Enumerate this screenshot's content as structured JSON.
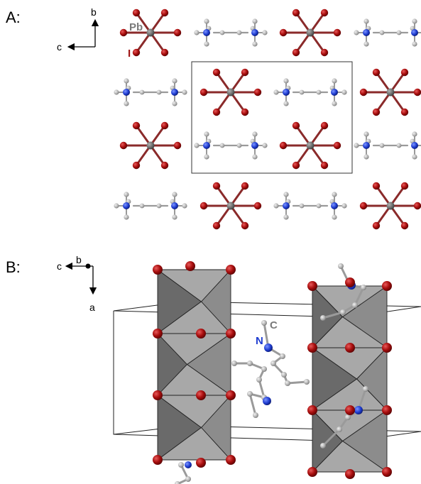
{
  "panels": [
    {
      "label": "A:",
      "axes": {
        "horizontal": "c",
        "vertical": "b"
      },
      "atom_labels": [
        {
          "text": "Pb",
          "color": "#7a7a7a"
        },
        {
          "text": "I",
          "color": "#a01818"
        }
      ]
    },
    {
      "label": "B:",
      "axes": {
        "horizontal": "c",
        "depth": "b",
        "vertical": "a"
      },
      "atom_labels": [
        {
          "text": "C",
          "color": "#7a7a7a"
        },
        {
          "text": "N",
          "color": "#1e3cd0"
        }
      ]
    }
  ],
  "colors": {
    "iodine": "#a80e0e",
    "lead": "#6e6e6e",
    "carbon": "#b4b4b4",
    "nitrogen": "#1e3cd0",
    "bond_pb_i": "#8a2a2a",
    "polyhedron_light": "#a8a8a8",
    "polyhedron_mid": "#8c8c8c",
    "polyhedron_dark": "#6a6a6a"
  }
}
